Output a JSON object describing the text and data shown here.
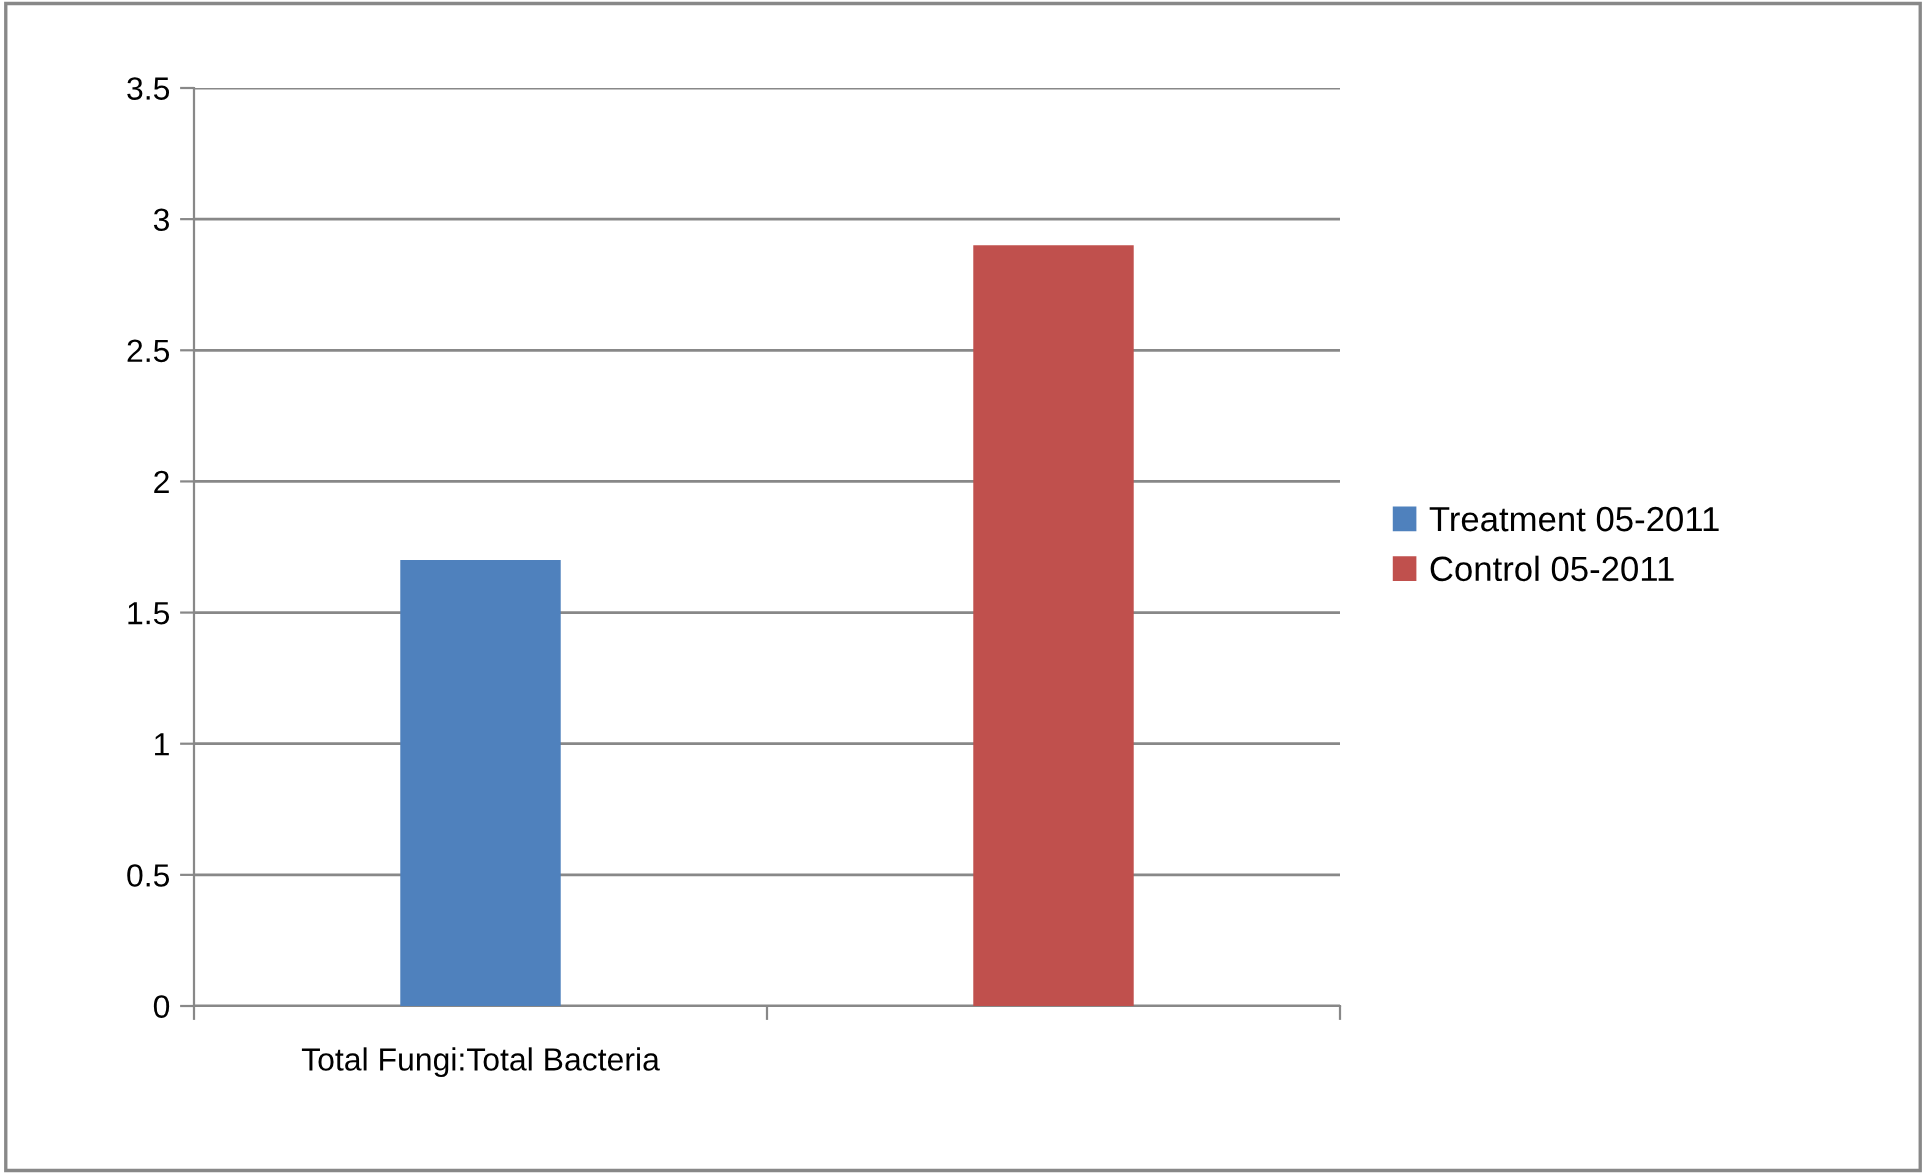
{
  "chart_data": {
    "type": "bar",
    "stacked": true,
    "categories": [
      "Total Fungi:Total Bacteria",
      null
    ],
    "series": [
      {
        "name": "Treatment 05-2011",
        "color": "#4f81bd",
        "values": [
          1.7,
          null
        ]
      },
      {
        "name": "Control 05-2011",
        "color": "#c0504d",
        "values": [
          null,
          2.9
        ]
      }
    ],
    "ylim": [
      0,
      3.5
    ],
    "yticks": [
      0,
      {
        "value": 0.5,
        "label": "0.5"
      },
      1,
      {
        "value": 1.5,
        "label": "1.5"
      },
      2,
      {
        "value": 2.5,
        "label": "2.5"
      },
      3,
      {
        "value": 3.5,
        "label": "3.5"
      }
    ],
    "grid": "y",
    "legend": "right"
  }
}
